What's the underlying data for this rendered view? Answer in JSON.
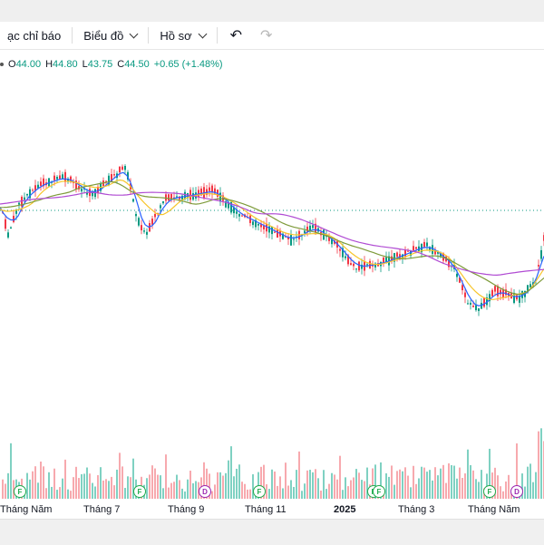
{
  "toolbar": {
    "indicators_label": "ạc chỉ báo",
    "chart_label": "Biểu đồ",
    "profile_label": "Hồ sơ",
    "undo_icon": "undo-icon",
    "redo_icon": "redo-icon"
  },
  "legend": {
    "open_key": "O",
    "open": "44.00",
    "high_key": "H",
    "high": "44.80",
    "low_key": "L",
    "low": "43.75",
    "close_key": "C",
    "close": "44.50",
    "change": "+0.65 (+1.48%)"
  },
  "colors": {
    "up": "#089981",
    "down": "#f23645",
    "ma_fast": "#2962ff",
    "ma_mid": "#f7c52b",
    "ma_slow": "#7e9b3a",
    "ma_long": "#b04bd3",
    "price_line": "#089981"
  },
  "x_axis": {
    "labels": [
      "Tháng Năm",
      "Tháng 7",
      "Tháng 9",
      "Tháng 11",
      "2025",
      "Tháng 3",
      "Tháng Năm"
    ],
    "bold_label": "2025"
  },
  "event_markers": [
    {
      "type": "F"
    },
    {
      "type": "F"
    },
    {
      "type": "D"
    },
    {
      "type": "F"
    },
    {
      "type": "F"
    },
    {
      "type": "F"
    },
    {
      "type": "F"
    },
    {
      "type": "D"
    }
  ],
  "chart_data": {
    "type": "candlestick",
    "price_trend": "declining from mid-2024 highs to a low in early 2025 (Tháng Năm) then sharp rally",
    "last_candle": {
      "open": 44.0,
      "high": 44.8,
      "low": 43.75,
      "close": 44.5
    },
    "moving_averages": 4,
    "volume_pane": true
  }
}
